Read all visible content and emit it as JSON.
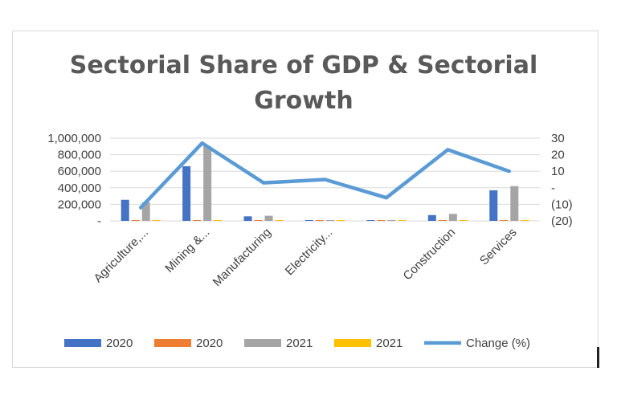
{
  "chart_data": {
    "type": "bar",
    "title_lines": [
      "Sectorial Share of GDP & Sectorial",
      "Growth"
    ],
    "categories": [
      "Agriculture,...",
      "Mining &...",
      "Manufacturing",
      "Electricity...",
      "",
      "Construction",
      "Services"
    ],
    "series": [
      {
        "name": "2020",
        "type": "bar",
        "axis": "left",
        "color": "#4472c4",
        "values": [
          255000,
          660000,
          55000,
          8000,
          5000,
          70000,
          370000
        ]
      },
      {
        "name": "2020",
        "type": "bar",
        "axis": "left",
        "color": "#ed7d31",
        "values": [
          5000,
          8000,
          4000,
          2000,
          2000,
          6000,
          8000
        ]
      },
      {
        "name": "2021",
        "type": "bar",
        "axis": "left",
        "color": "#a5a5a5",
        "values": [
          225000,
          900000,
          62000,
          8000,
          6000,
          85000,
          420000
        ]
      },
      {
        "name": "2021",
        "type": "bar",
        "axis": "left",
        "color": "#ffc000",
        "values": [
          5000,
          5000,
          3000,
          2000,
          2000,
          4000,
          5000
        ]
      },
      {
        "name": "Change (%)",
        "type": "line",
        "axis": "right",
        "color": "#5b9bd5",
        "values": [
          -12,
          27,
          3,
          5,
          -6,
          23,
          10
        ]
      }
    ],
    "y_left": {
      "ylim": [
        0,
        1000000
      ],
      "ticks": [
        0,
        200000,
        400000,
        600000,
        800000,
        1000000
      ],
      "tick_labels": [
        "-",
        "200,000",
        "400,000",
        "600,000",
        "800,000",
        "1,000,000"
      ]
    },
    "y_right": {
      "ylim": [
        -20,
        30
      ],
      "ticks": [
        -20,
        -10,
        0,
        10,
        20,
        30
      ],
      "tick_labels": [
        "(20)",
        "(10)",
        "-",
        "10",
        "20",
        "30"
      ]
    },
    "grid": true,
    "legend": "bottom",
    "legend_labels": [
      "2020",
      "2020",
      "2021",
      "2021",
      "Change (%)"
    ]
  }
}
